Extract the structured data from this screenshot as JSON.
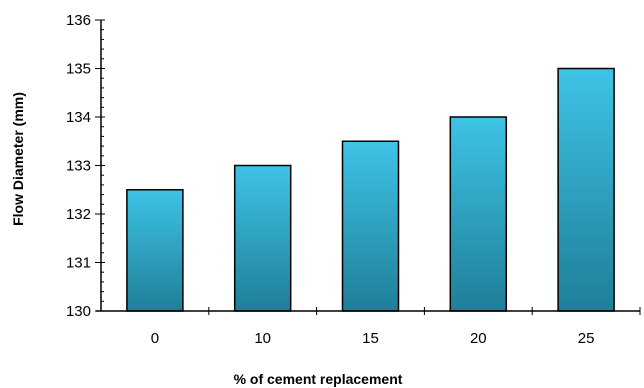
{
  "chart_data": {
    "type": "bar",
    "title": "",
    "xlabel": "% of cement replacement",
    "ylabel": "Flow Diameter (mm)",
    "categories": [
      "0",
      "10",
      "15",
      "20",
      "25"
    ],
    "values": [
      132.5,
      133,
      133.5,
      134,
      135
    ],
    "ylim": [
      130,
      136
    ],
    "yticks": [
      130,
      131,
      132,
      133,
      134,
      135,
      136
    ],
    "grid": false,
    "legend": "none",
    "colors": {
      "bar_top": "#3EC3E6",
      "bar_bottom": "#1F7F98",
      "bar_outline": "#000000",
      "axis": "#000000"
    }
  }
}
